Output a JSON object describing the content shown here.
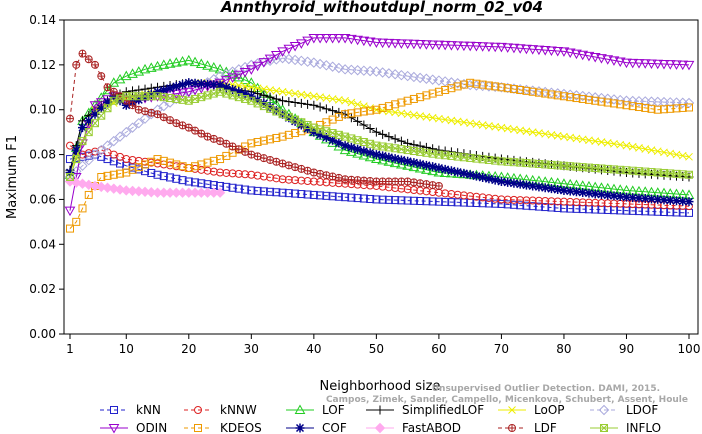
{
  "chart_data": {
    "type": "line",
    "title": "Annthyroid_withoutdupl_norm_02_v04",
    "xlabel": "Neighborhood size",
    "ylabel": "Maximum F1",
    "xlim": [
      1,
      100
    ],
    "ylim": [
      0,
      0.14
    ],
    "xticks": [
      "1",
      "10",
      "20",
      "30",
      "40",
      "50",
      "60",
      "70",
      "80",
      "90",
      "100"
    ],
    "yticks": [
      "0.00",
      "0.02",
      "0.04",
      "0.06",
      "0.08",
      "0.10",
      "0.12",
      "0.14"
    ],
    "grid": false,
    "legend_position": "bottom",
    "watermark": [
      "Unsupervised Outlier Detection. DAMI, 2015.",
      "Campos, Zimek, Sander, Campello, Micenkova, Schubert, Assent, Houle"
    ],
    "series": [
      {
        "name": "kNN",
        "color": "#2222cc",
        "marker": "square",
        "dash": "4,3",
        "points": [
          [
            1,
            0.078
          ],
          [
            5,
            0.08
          ],
          [
            10,
            0.075
          ],
          [
            15,
            0.071
          ],
          [
            20,
            0.068
          ],
          [
            25,
            0.066
          ],
          [
            30,
            0.064
          ],
          [
            40,
            0.062
          ],
          [
            50,
            0.06
          ],
          [
            60,
            0.059
          ],
          [
            70,
            0.058
          ],
          [
            80,
            0.056
          ],
          [
            90,
            0.055
          ],
          [
            100,
            0.054
          ]
        ]
      },
      {
        "name": "kNNW",
        "color": "#dd2222",
        "marker": "circle",
        "dash": "4,3",
        "points": [
          [
            1,
            0.084
          ],
          [
            3,
            0.08
          ],
          [
            6,
            0.082
          ],
          [
            10,
            0.078
          ],
          [
            15,
            0.076
          ],
          [
            20,
            0.074
          ],
          [
            25,
            0.072
          ],
          [
            30,
            0.071
          ],
          [
            35,
            0.069
          ],
          [
            40,
            0.068
          ],
          [
            50,
            0.066
          ],
          [
            60,
            0.063
          ],
          [
            70,
            0.06
          ],
          [
            80,
            0.059
          ],
          [
            90,
            0.058
          ],
          [
            100,
            0.057
          ]
        ]
      },
      {
        "name": "LOF",
        "color": "#22cc22",
        "marker": "triangle-up",
        "dash": "",
        "points": [
          [
            1,
            0.071
          ],
          [
            3,
            0.095
          ],
          [
            5,
            0.102
          ],
          [
            8,
            0.112
          ],
          [
            10,
            0.115
          ],
          [
            13,
            0.118
          ],
          [
            16,
            0.12
          ],
          [
            20,
            0.122
          ],
          [
            25,
            0.118
          ],
          [
            30,
            0.112
          ],
          [
            35,
            0.1
          ],
          [
            40,
            0.09
          ],
          [
            45,
            0.082
          ],
          [
            50,
            0.078
          ],
          [
            60,
            0.072
          ],
          [
            70,
            0.07
          ],
          [
            80,
            0.067
          ],
          [
            90,
            0.064
          ],
          [
            100,
            0.062
          ]
        ]
      },
      {
        "name": "SimplifiedLOF",
        "color": "#000000",
        "marker": "plus",
        "dash": "",
        "points": [
          [
            1,
            0.073
          ],
          [
            3,
            0.095
          ],
          [
            5,
            0.1
          ],
          [
            8,
            0.106
          ],
          [
            10,
            0.108
          ],
          [
            15,
            0.11
          ],
          [
            20,
            0.112
          ],
          [
            25,
            0.11
          ],
          [
            30,
            0.108
          ],
          [
            35,
            0.104
          ],
          [
            40,
            0.102
          ],
          [
            45,
            0.098
          ],
          [
            50,
            0.09
          ],
          [
            55,
            0.085
          ],
          [
            60,
            0.082
          ],
          [
            70,
            0.078
          ],
          [
            80,
            0.075
          ],
          [
            90,
            0.072
          ],
          [
            100,
            0.07
          ]
        ]
      },
      {
        "name": "LoOP",
        "color": "#eeee00",
        "marker": "x",
        "dash": "",
        "points": [
          [
            1,
            0.072
          ],
          [
            5,
            0.1
          ],
          [
            10,
            0.105
          ],
          [
            15,
            0.108
          ],
          [
            20,
            0.112
          ],
          [
            25,
            0.112
          ],
          [
            30,
            0.11
          ],
          [
            35,
            0.108
          ],
          [
            40,
            0.106
          ],
          [
            45,
            0.104
          ],
          [
            50,
            0.1
          ],
          [
            60,
            0.096
          ],
          [
            70,
            0.092
          ],
          [
            80,
            0.088
          ],
          [
            90,
            0.084
          ],
          [
            100,
            0.079
          ]
        ]
      },
      {
        "name": "LDOF",
        "color": "#aaaadd",
        "marker": "diamond",
        "dash": "4,3",
        "points": [
          [
            1,
            0.07
          ],
          [
            5,
            0.08
          ],
          [
            10,
            0.09
          ],
          [
            15,
            0.1
          ],
          [
            20,
            0.108
          ],
          [
            25,
            0.115
          ],
          [
            30,
            0.12
          ],
          [
            35,
            0.123
          ],
          [
            40,
            0.121
          ],
          [
            45,
            0.118
          ],
          [
            50,
            0.117
          ],
          [
            55,
            0.115
          ],
          [
            60,
            0.113
          ],
          [
            65,
            0.111
          ],
          [
            70,
            0.11
          ],
          [
            80,
            0.107
          ],
          [
            90,
            0.104
          ],
          [
            100,
            0.103
          ]
        ]
      },
      {
        "name": "ODIN",
        "color": "#9900cc",
        "marker": "triangle-down",
        "dash": "",
        "points": [
          [
            1,
            0.055
          ],
          [
            3,
            0.085
          ],
          [
            5,
            0.102
          ],
          [
            8,
            0.106
          ],
          [
            10,
            0.104
          ],
          [
            15,
            0.106
          ],
          [
            20,
            0.108
          ],
          [
            25,
            0.112
          ],
          [
            30,
            0.118
          ],
          [
            35,
            0.126
          ],
          [
            40,
            0.132
          ],
          [
            45,
            0.132
          ],
          [
            50,
            0.13
          ],
          [
            60,
            0.129
          ],
          [
            70,
            0.128
          ],
          [
            80,
            0.126
          ],
          [
            90,
            0.121
          ],
          [
            100,
            0.12
          ]
        ]
      },
      {
        "name": "KDEOS",
        "color": "#ee9900",
        "marker": "square",
        "dash": "4,3",
        "points": [
          [
            1,
            0.047
          ],
          [
            2,
            0.05
          ],
          [
            4,
            0.062
          ],
          [
            6,
            0.07
          ],
          [
            10,
            0.072
          ],
          [
            15,
            0.078
          ],
          [
            20,
            0.074
          ],
          [
            25,
            0.078
          ],
          [
            30,
            0.085
          ],
          [
            35,
            0.088
          ],
          [
            40,
            0.092
          ],
          [
            45,
            0.098
          ],
          [
            50,
            0.1
          ],
          [
            55,
            0.104
          ],
          [
            60,
            0.108
          ],
          [
            65,
            0.112
          ],
          [
            70,
            0.11
          ],
          [
            75,
            0.108
          ],
          [
            80,
            0.106
          ],
          [
            85,
            0.104
          ],
          [
            90,
            0.102
          ],
          [
            95,
            0.1
          ],
          [
            100,
            0.101
          ]
        ]
      },
      {
        "name": "COF",
        "color": "#000088",
        "marker": "asterisk",
        "dash": "",
        "points": [
          [
            1,
            0.072
          ],
          [
            3,
            0.092
          ],
          [
            5,
            0.098
          ],
          [
            8,
            0.106
          ],
          [
            10,
            0.102
          ],
          [
            15,
            0.108
          ],
          [
            20,
            0.112
          ],
          [
            25,
            0.111
          ],
          [
            30,
            0.106
          ],
          [
            35,
            0.098
          ],
          [
            40,
            0.09
          ],
          [
            45,
            0.084
          ],
          [
            50,
            0.08
          ],
          [
            60,
            0.074
          ],
          [
            70,
            0.068
          ],
          [
            80,
            0.064
          ],
          [
            90,
            0.061
          ],
          [
            100,
            0.059
          ]
        ]
      },
      {
        "name": "FastABOD",
        "color": "#ffaaee",
        "marker": "diamond-filled",
        "dash": "",
        "points": [
          [
            1,
            0.068
          ],
          [
            5,
            0.066
          ],
          [
            10,
            0.064
          ],
          [
            15,
            0.063
          ],
          [
            20,
            0.063
          ],
          [
            25,
            0.063
          ]
        ]
      },
      {
        "name": "LDF",
        "color": "#aa2222",
        "marker": "circle-plus",
        "dash": "4,3",
        "points": [
          [
            1,
            0.096
          ],
          [
            2,
            0.12
          ],
          [
            3,
            0.125
          ],
          [
            5,
            0.12
          ],
          [
            7,
            0.11
          ],
          [
            10,
            0.104
          ],
          [
            12,
            0.1
          ],
          [
            15,
            0.098
          ],
          [
            18,
            0.094
          ],
          [
            20,
            0.092
          ],
          [
            23,
            0.088
          ],
          [
            25,
            0.086
          ],
          [
            30,
            0.08
          ],
          [
            35,
            0.076
          ],
          [
            40,
            0.072
          ],
          [
            45,
            0.069
          ],
          [
            50,
            0.068
          ],
          [
            55,
            0.068
          ],
          [
            60,
            0.066
          ]
        ]
      },
      {
        "name": "INFLO",
        "color": "#99cc33",
        "marker": "square-x",
        "dash": "",
        "points": [
          [
            1,
            0.07
          ],
          [
            3,
            0.086
          ],
          [
            5,
            0.094
          ],
          [
            8,
            0.104
          ],
          [
            10,
            0.106
          ],
          [
            15,
            0.106
          ],
          [
            20,
            0.104
          ],
          [
            25,
            0.108
          ],
          [
            30,
            0.104
          ],
          [
            35,
            0.098
          ],
          [
            40,
            0.092
          ],
          [
            45,
            0.088
          ],
          [
            50,
            0.084
          ],
          [
            60,
            0.08
          ],
          [
            70,
            0.077
          ],
          [
            80,
            0.075
          ],
          [
            90,
            0.073
          ],
          [
            100,
            0.071
          ]
        ]
      }
    ]
  }
}
